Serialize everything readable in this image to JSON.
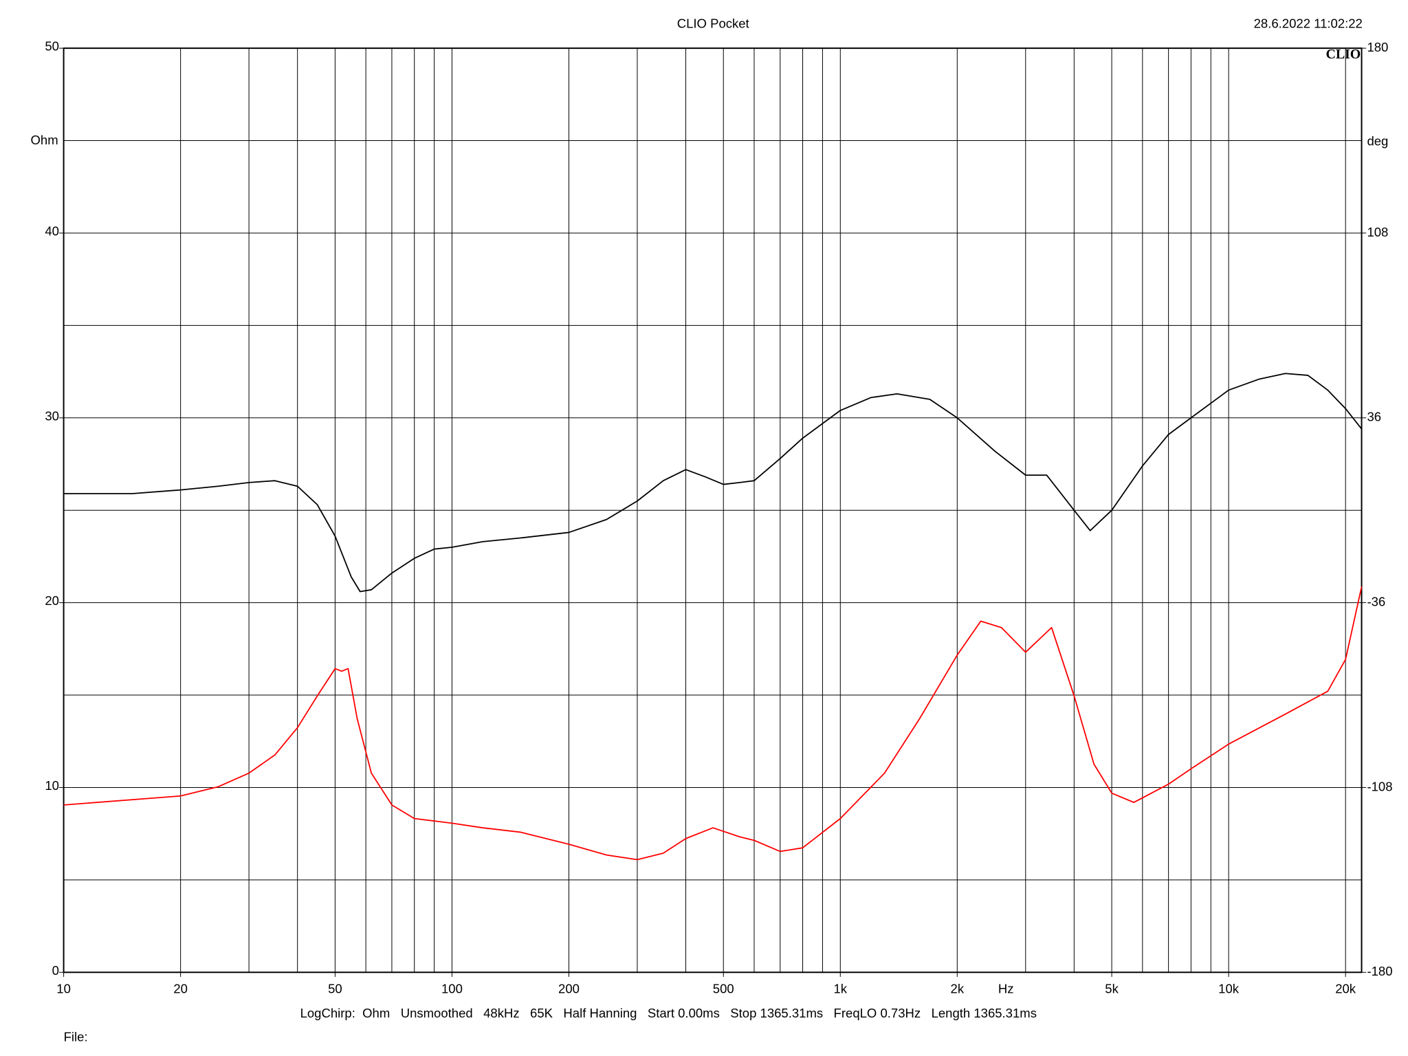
{
  "chart_data": {
    "type": "line",
    "title": "CLIO Pocket",
    "timestamp": "28.6.2022 11:02:22",
    "logo": "CLIO",
    "ylabel": "Ohm",
    "y2label": "deg",
    "xlabel": "Hz",
    "footer": "LogChirp:  Ohm   Unsmoothed   48kHz   65K   Half Hanning   Start 0.00ms   Stop 1365.31ms   FreqLO 0.73Hz   Length 1365.31ms",
    "file_label": "File:",
    "xscale": "log",
    "grid": true,
    "xlim": [
      10,
      22000
    ],
    "xticks": [
      10,
      20,
      50,
      100,
      200,
      500,
      {
        "value": 1000,
        "label": "1k"
      },
      {
        "value": 2000,
        "label": "2k"
      },
      {
        "value": 5000,
        "label": "5k"
      },
      {
        "value": 10000,
        "label": "10k"
      },
      {
        "value": 20000,
        "label": "20k"
      }
    ],
    "xgrid": [
      20,
      30,
      40,
      50,
      60,
      70,
      80,
      90,
      100,
      200,
      300,
      400,
      500,
      600,
      700,
      800,
      900,
      1000,
      2000,
      3000,
      4000,
      5000,
      6000,
      7000,
      8000,
      9000,
      10000,
      20000
    ],
    "ylim": [
      0,
      50
    ],
    "yticks": [
      0,
      10,
      20,
      30,
      40,
      50
    ],
    "ygrid": [
      5,
      10,
      15,
      20,
      25,
      30,
      35,
      40,
      45
    ],
    "y2lim": [
      -180,
      180
    ],
    "y2ticks": [
      -180,
      -108,
      -36,
      36,
      108,
      180
    ],
    "series": [
      {
        "color": "#000000",
        "x": [
          10,
          15,
          20,
          25,
          30,
          35,
          40,
          45,
          50,
          55,
          58,
          62,
          70,
          80,
          90,
          100,
          120,
          150,
          200,
          250,
          300,
          350,
          400,
          450,
          500,
          550,
          600,
          700,
          800,
          1000,
          1200,
          1400,
          1700,
          2000,
          2500,
          3000,
          3400,
          4000,
          4400,
          5000,
          6000,
          7000,
          8000,
          10000,
          12000,
          14000,
          16000,
          18000,
          20000,
          22000
        ],
        "values": [
          25.9,
          25.9,
          26.1,
          26.3,
          26.5,
          26.6,
          26.3,
          25.3,
          23.6,
          21.4,
          20.6,
          20.7,
          21.6,
          22.4,
          22.9,
          23.0,
          23.3,
          23.5,
          23.8,
          24.5,
          25.5,
          26.6,
          27.2,
          26.8,
          26.4,
          26.5,
          26.6,
          27.8,
          28.9,
          30.4,
          31.1,
          31.3,
          31.0,
          30.0,
          28.2,
          26.9,
          26.9,
          25.0,
          23.9,
          25.0,
          27.4,
          29.1,
          30.0,
          31.5,
          32.1,
          32.4,
          32.3,
          31.5,
          30.5,
          29.4
        ]
      },
      {
        "color": "#ff0000",
        "axis": "y2",
        "x": [
          10,
          20,
          25,
          30,
          35,
          40,
          45,
          50,
          52,
          54,
          57,
          62,
          70,
          80,
          100,
          120,
          150,
          200,
          250,
          300,
          350,
          400,
          470,
          550,
          600,
          700,
          800,
          1000,
          1300,
          1600,
          2000,
          2300,
          2600,
          3000,
          3500,
          4000,
          4500,
          5000,
          5700,
          7000,
          8000,
          10000,
          14000,
          18000,
          20000,
          22000
        ],
        "values": [
          -114.8,
          -111.3,
          -107.7,
          -102.4,
          -95.3,
          -84.7,
          -72.3,
          -61.7,
          -62.7,
          -61.7,
          -81.2,
          -102.4,
          -114.8,
          -120.1,
          -121.9,
          -123.7,
          -125.4,
          -130.1,
          -134.3,
          -136.1,
          -133.6,
          -127.9,
          -123.7,
          -127.2,
          -128.6,
          -132.9,
          -131.5,
          -120.1,
          -102.4,
          -81.2,
          -56.4,
          -43.2,
          -45.7,
          -55.3,
          -45.7,
          -72.3,
          -98.9,
          -110.2,
          -113.8,
          -106.7,
          -100.7,
          -91.1,
          -79.4,
          -70.5,
          -58.1,
          -29.8
        ]
      }
    ]
  }
}
